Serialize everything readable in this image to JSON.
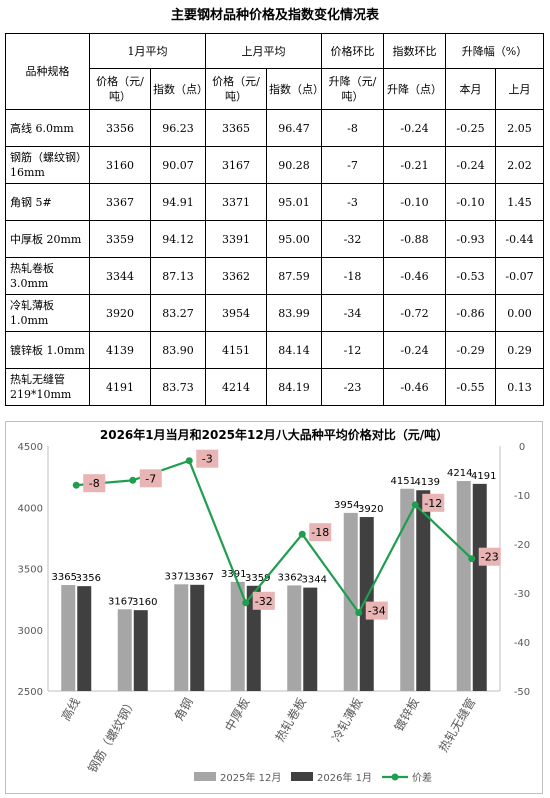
{
  "title": "主要钢材品种价格及指数变化情况表",
  "table": {
    "headers": {
      "variety": "品种规格",
      "jan": "1月平均",
      "dec": "上月平均",
      "mom": "价格环比",
      "idx": "指数环比",
      "chg": "升降幅（%）",
      "price": "价格（元/吨）",
      "index": "指数（点）",
      "mom_sub": "升降（元/吨）",
      "idx_sub": "升降（点）",
      "this_month": "本月",
      "last_month": "上月"
    },
    "rows": [
      {
        "name": "高线 6.0mm",
        "jan_price": "3356",
        "jan_index": "96.23",
        "dec_price": "3365",
        "dec_index": "96.47",
        "mom": "-8",
        "idx": "-0.24",
        "chg": "-0.25",
        "last": "2.05"
      },
      {
        "name": "钢筋（螺纹钢）16mm",
        "jan_price": "3160",
        "jan_index": "90.07",
        "dec_price": "3167",
        "dec_index": "90.28",
        "mom": "-7",
        "idx": "-0.21",
        "chg": "-0.24",
        "last": "2.02"
      },
      {
        "name": "角钢 5#",
        "jan_price": "3367",
        "jan_index": "94.91",
        "dec_price": "3371",
        "dec_index": "95.01",
        "mom": "-3",
        "idx": "-0.10",
        "chg": "-0.10",
        "last": "1.45"
      },
      {
        "name": "中厚板 20mm",
        "jan_price": "3359",
        "jan_index": "94.12",
        "dec_price": "3391",
        "dec_index": "95.00",
        "mom": "-32",
        "idx": "-0.88",
        "chg": "-0.93",
        "last": "-0.44"
      },
      {
        "name": "热轧卷板 3.0mm",
        "jan_price": "3344",
        "jan_index": "87.13",
        "dec_price": "3362",
        "dec_index": "87.59",
        "mom": "-18",
        "idx": "-0.46",
        "chg": "-0.53",
        "last": "-0.07"
      },
      {
        "name": "冷轧薄板 1.0mm",
        "jan_price": "3920",
        "jan_index": "83.27",
        "dec_price": "3954",
        "dec_index": "83.99",
        "mom": "-34",
        "idx": "-0.72",
        "chg": "-0.86",
        "last": "0.00"
      },
      {
        "name": "镀锌板 1.0mm",
        "jan_price": "4139",
        "jan_index": "83.90",
        "dec_price": "4151",
        "dec_index": "84.14",
        "mom": "-12",
        "idx": "-0.24",
        "chg": "-0.29",
        "last": "0.29"
      },
      {
        "name": "热轧无缝管 219*10mm",
        "jan_price": "4191",
        "jan_index": "83.73",
        "dec_price": "4214",
        "dec_index": "84.19",
        "mom": "-23",
        "idx": "-0.46",
        "chg": "-0.55",
        "last": "0.13"
      }
    ]
  },
  "chart_data": {
    "type": "bar",
    "title": "2026年1月当月和2025年12月八大品种平均价格对比（元/吨）",
    "categories": [
      "高线",
      "钢筋（螺纹钢）",
      "角钢",
      "中厚板",
      "热轧卷板",
      "冷轧薄板",
      "镀锌板",
      "热轧无缝管"
    ],
    "series": [
      {
        "name": "2025年 12月",
        "type": "bar",
        "axis": "left",
        "color": "#a6a6a6",
        "values": [
          3365,
          3167,
          3371,
          3391,
          3362,
          3954,
          4151,
          4214
        ]
      },
      {
        "name": "2026年 1月",
        "type": "bar",
        "axis": "left",
        "color": "#404040",
        "values": [
          3356,
          3160,
          3367,
          3359,
          3344,
          3920,
          4139,
          4191
        ]
      },
      {
        "name": "价差",
        "type": "line",
        "axis": "right",
        "color": "#1e9e4e",
        "values": [
          -8,
          -7,
          -3,
          -32,
          -18,
          -34,
          -12,
          -23
        ]
      }
    ],
    "ylim": [
      2500,
      4500
    ],
    "yticks": [
      2500,
      3000,
      3500,
      4000,
      4500
    ],
    "y2lim": [
      -50,
      0
    ],
    "y2ticks": [
      0,
      -10,
      -20,
      -30,
      -40,
      -50
    ],
    "legend": "bottom",
    "grid": false,
    "diff_label_color": "#e8b4b4"
  }
}
